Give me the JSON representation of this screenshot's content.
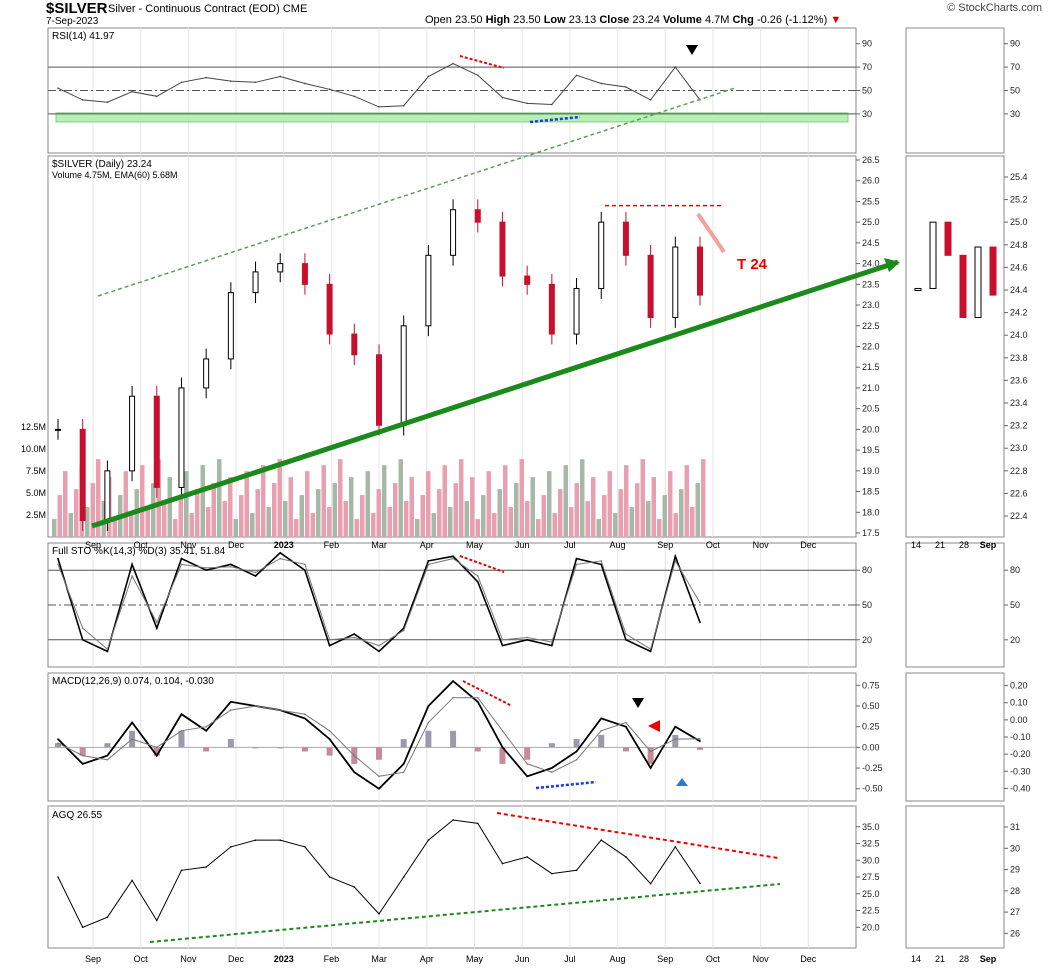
{
  "header": {
    "symbol": "$SILVER",
    "description": "Silver - Continuous Contract (EOD)  CME",
    "date": "7-Sep-2023",
    "open_label": "Open",
    "open": "23.50",
    "high_label": "High",
    "high": "23.50",
    "low_label": "Low",
    "low": "23.13",
    "close_label": "Close",
    "close": "23.24",
    "volume_label": "Volume",
    "volume": "4.7M",
    "chg_label": "Chg",
    "chg": "-0.26 (-1.12%)",
    "brand": "© StockCharts.com"
  },
  "colors": {
    "up": "#000000",
    "down": "#c8102e",
    "volume_up": "#a8b8a8",
    "volume_down": "#e8a0b0",
    "trend": "#1a8a1a",
    "band": "#b5f0b5"
  },
  "chart_data": [
    {
      "type": "line",
      "panel": "rsi",
      "title": "RSI(14) 41.97",
      "ylim": [
        0,
        100
      ],
      "y_ticks": [
        30,
        50,
        70,
        90
      ],
      "x": [
        "2022-08-15",
        "2022-09-01",
        "2022-09-15",
        "2022-10-01",
        "2022-10-15",
        "2022-11-01",
        "2022-11-15",
        "2022-12-01",
        "2022-12-15",
        "2023-01-01",
        "2023-01-15",
        "2023-02-01",
        "2023-02-15",
        "2023-03-01",
        "2023-03-15",
        "2023-04-01",
        "2023-04-15",
        "2023-05-01",
        "2023-05-15",
        "2023-06-01",
        "2023-06-15",
        "2023-07-01",
        "2023-07-15",
        "2023-08-01",
        "2023-08-15",
        "2023-09-01",
        "2023-09-07"
      ],
      "values": [
        52,
        42,
        40,
        49,
        45,
        57,
        61,
        58,
        57,
        62,
        56,
        51,
        45,
        36,
        37,
        62,
        73,
        63,
        44,
        39,
        38,
        63,
        56,
        53,
        42,
        70,
        42
      ]
    },
    {
      "type": "candlestick",
      "panel": "price",
      "title": "$SILVER (Daily) 23.24",
      "subtitle": "Volume 4.75M, EMA(60) 5.68M",
      "ylim": [
        17.5,
        26.5
      ],
      "y_ticks": [
        17.5,
        18.0,
        18.5,
        19.0,
        19.5,
        20.0,
        20.5,
        21.0,
        21.5,
        22.0,
        22.5,
        23.0,
        23.5,
        24.0,
        24.5,
        25.0,
        25.5,
        26.0,
        26.5
      ],
      "volume_ticks": [
        "2.5M",
        "5.0M",
        "7.5M",
        "10.0M",
        "12.5M"
      ],
      "x_labels": [
        "Sep",
        "Oct",
        "Nov",
        "Dec",
        "2023",
        "Feb",
        "Mar",
        "Apr",
        "May",
        "Jun",
        "Jul",
        "Aug",
        "Sep",
        "Oct",
        "Nov",
        "Dec"
      ],
      "x": [
        "2022-08-15",
        "2022-09-01",
        "2022-09-15",
        "2022-10-01",
        "2022-10-15",
        "2022-11-01",
        "2022-11-15",
        "2022-12-01",
        "2022-12-15",
        "2023-01-01",
        "2023-01-15",
        "2023-02-01",
        "2023-02-15",
        "2023-03-01",
        "2023-03-15",
        "2023-04-01",
        "2023-04-15",
        "2023-05-01",
        "2023-05-15",
        "2023-06-01",
        "2023-06-15",
        "2023-07-01",
        "2023-07-15",
        "2023-08-01",
        "2023-08-15",
        "2023-09-01",
        "2023-09-07"
      ],
      "close": [
        20.0,
        17.8,
        19.0,
        20.8,
        18.6,
        21.0,
        21.7,
        23.3,
        23.8,
        24.0,
        23.5,
        22.3,
        21.8,
        20.1,
        22.5,
        24.2,
        25.3,
        25.0,
        23.7,
        23.5,
        22.3,
        23.4,
        25.0,
        24.2,
        22.7,
        24.4,
        23.24
      ],
      "annotation": "T 24",
      "resistance": 25.4
    },
    {
      "type": "line",
      "panel": "stochastic",
      "title": "Full STO %K(14,3) %D(3) 35.41, 51.84",
      "ylim": [
        0,
        100
      ],
      "y_ticks": [
        20,
        50,
        80
      ],
      "k": [
        90,
        20,
        10,
        85,
        30,
        90,
        80,
        85,
        75,
        95,
        80,
        15,
        25,
        10,
        30,
        88,
        92,
        70,
        15,
        20,
        15,
        90,
        85,
        20,
        10,
        92,
        35
      ],
      "d": [
        85,
        30,
        12,
        75,
        35,
        85,
        82,
        83,
        78,
        90,
        85,
        20,
        22,
        15,
        28,
        85,
        90,
        75,
        20,
        22,
        18,
        85,
        88,
        25,
        12,
        88,
        52
      ]
    },
    {
      "type": "line",
      "panel": "macd",
      "title": "MACD(12,26,9) 0.074, 0.104, -0.030",
      "ylim": [
        -0.6,
        0.85
      ],
      "y_ticks": [
        -0.5,
        -0.25,
        0.0,
        0.25,
        0.5,
        0.75
      ],
      "macd": [
        0.1,
        -0.2,
        -0.1,
        0.3,
        -0.1,
        0.4,
        0.2,
        0.55,
        0.5,
        0.45,
        0.35,
        0.1,
        -0.3,
        -0.5,
        -0.2,
        0.5,
        0.8,
        0.55,
        0.0,
        -0.35,
        -0.25,
        -0.05,
        0.35,
        0.25,
        -0.25,
        0.25,
        0.074
      ],
      "signal": [
        0.05,
        -0.1,
        -0.15,
        0.1,
        0.0,
        0.2,
        0.25,
        0.45,
        0.5,
        0.45,
        0.4,
        0.2,
        -0.1,
        -0.35,
        -0.3,
        0.3,
        0.6,
        0.6,
        0.2,
        -0.2,
        -0.3,
        -0.15,
        0.2,
        0.3,
        -0.05,
        0.1,
        0.104
      ]
    },
    {
      "type": "line",
      "panel": "agq",
      "title": "AGQ 26.55",
      "ylim": [
        17.5,
        37.5
      ],
      "y_ticks": [
        20.0,
        22.5,
        25.0,
        27.5,
        30.0,
        32.5,
        35.0
      ],
      "values": [
        27.5,
        20.0,
        21.5,
        27.0,
        21.0,
        28.5,
        29.0,
        32.0,
        33.0,
        33.0,
        32.0,
        27.5,
        26.0,
        22.0,
        27.5,
        33.0,
        36.0,
        35.5,
        29.5,
        30.5,
        28.0,
        28.5,
        33.0,
        30.5,
        26.5,
        32.0,
        26.55
      ]
    },
    {
      "type": "candlestick",
      "panel": "zoom",
      "x_labels": [
        "14",
        "21",
        "28",
        "Sep"
      ],
      "y_ticks": [
        22.4,
        22.6,
        22.8,
        23.0,
        23.2,
        23.4,
        23.6,
        23.8,
        24.0,
        24.2,
        24.4,
        24.6,
        24.8,
        25.0,
        25.2,
        25.4
      ],
      "rsi_ticks": [
        30,
        50,
        70,
        90
      ],
      "sto_ticks": [
        20,
        50,
        80
      ],
      "macd_ticks": [
        -0.4,
        -0.3,
        -0.2,
        -0.1,
        0.0,
        0.1,
        0.2
      ],
      "agq_ticks": [
        26,
        27,
        28,
        29,
        30,
        31
      ]
    }
  ]
}
